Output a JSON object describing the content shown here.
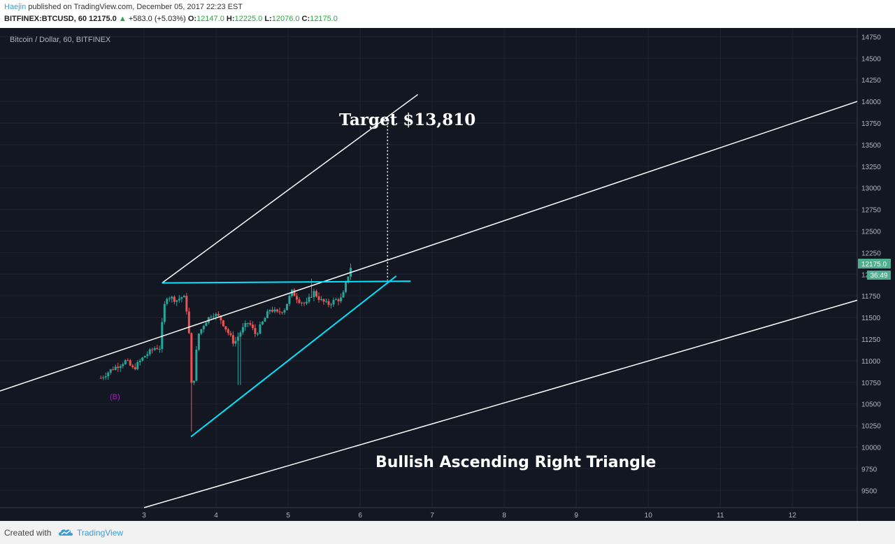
{
  "header": {
    "author": "Haejin",
    "published": " published on TradingView.com, December 05, 2017 22:23 EST",
    "symbol": "BITFINEX:BTCUSD, 60",
    "last": "12175.0",
    "change_arrow": "▲",
    "change": "+583.0 (+5.03%)",
    "o_label": "O:",
    "o_value": "12147.0",
    "h_label": "H:",
    "h_value": "12225.0",
    "l_label": "L:",
    "l_value": "12076.0",
    "c_label": "C:",
    "c_value": "12175.0"
  },
  "chart_title": "Bitcoin / Dollar, 60, BITFINEX",
  "wave_label": "(B)",
  "annotations": {
    "target": "Target $13,810",
    "pattern": "Bullish Ascending Right Triangle"
  },
  "price_badge": "12175.0",
  "countdown_badge": "36:49",
  "footer": {
    "created_with": "Created with",
    "brand": "TradingView"
  },
  "colors": {
    "background": "#131722",
    "up": "#26a69a",
    "down": "#ef5350",
    "cyan_line": "#00e5ff",
    "white_line": "#ffffff",
    "wave_label": "#9c27b0",
    "badge": "#4caf8f"
  },
  "chart_data": {
    "type": "candlestick",
    "title": "Bitcoin / Dollar, 60, BITFINEX",
    "x_ticks": [
      "3",
      "4",
      "5",
      "6",
      "7",
      "8",
      "9",
      "10",
      "11",
      "12"
    ],
    "x_range": [
      1.0,
      12.9
    ],
    "y_ticks": [
      9500,
      9750,
      10000,
      10250,
      10500,
      10750,
      11000,
      11250,
      11500,
      11750,
      12000,
      12250,
      12500,
      12750,
      13000,
      13250,
      13500,
      13750,
      14000,
      14250,
      14500,
      14750
    ],
    "y_range": [
      9300,
      14850
    ],
    "last_price": 12175.0,
    "price_path": [
      [
        2.4,
        10800
      ],
      [
        2.55,
        10900
      ],
      [
        2.75,
        11000
      ],
      [
        2.85,
        10900
      ],
      [
        3.0,
        11050
      ],
      [
        3.15,
        11150
      ],
      [
        3.22,
        11150
      ],
      [
        3.27,
        11600
      ],
      [
        3.32,
        11750
      ],
      [
        3.45,
        11700
      ],
      [
        3.55,
        11750
      ],
      [
        3.6,
        11550
      ],
      [
        3.63,
        11250
      ],
      [
        3.67,
        10500
      ],
      [
        3.7,
        10900
      ],
      [
        3.75,
        11300
      ],
      [
        3.85,
        11450
      ],
      [
        3.95,
        11550
      ],
      [
        4.05,
        11500
      ],
      [
        4.15,
        11350
      ],
      [
        4.25,
        11200
      ],
      [
        4.35,
        11350
      ],
      [
        4.45,
        11450
      ],
      [
        4.55,
        11300
      ],
      [
        4.65,
        11450
      ],
      [
        4.75,
        11600
      ],
      [
        4.85,
        11550
      ],
      [
        4.95,
        11600
      ],
      [
        5.05,
        11800
      ],
      [
        5.15,
        11700
      ],
      [
        5.25,
        11650
      ],
      [
        5.35,
        11800
      ],
      [
        5.45,
        11700
      ],
      [
        5.55,
        11650
      ],
      [
        5.65,
        11700
      ],
      [
        5.75,
        11720
      ],
      [
        5.82,
        11950
      ],
      [
        5.9,
        12175
      ]
    ],
    "lines": [
      {
        "name": "channel-upper",
        "from": [
          1.0,
          10650
        ],
        "to": [
          12.9,
          14000
        ]
      },
      {
        "name": "channel-lower",
        "from": [
          3.0,
          9300
        ],
        "to": [
          12.9,
          11700
        ]
      },
      {
        "name": "target-line",
        "from": [
          3.25,
          11900
        ],
        "to": [
          6.8,
          14080
        ]
      },
      {
        "name": "triangle-top",
        "from": [
          3.25,
          11900
        ],
        "to": [
          6.7,
          11920
        ]
      },
      {
        "name": "triangle-bottom",
        "from": [
          3.65,
          10120
        ],
        "to": [
          6.5,
          11980
        ]
      },
      {
        "name": "target-projection",
        "from": [
          6.38,
          13800
        ],
        "to": [
          6.38,
          11930
        ]
      }
    ]
  }
}
